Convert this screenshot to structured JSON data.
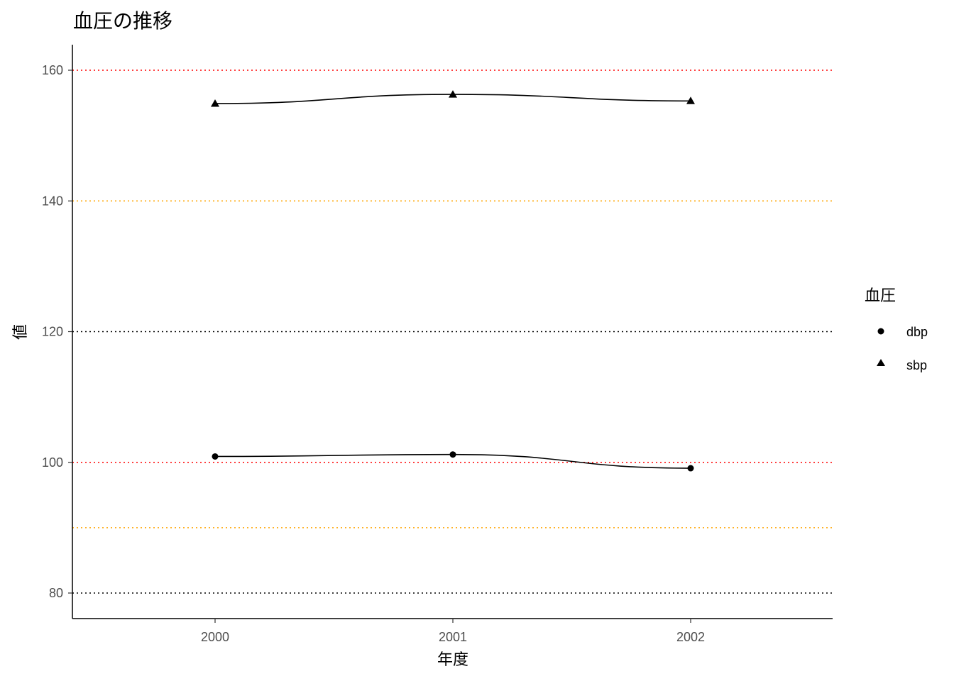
{
  "chart_data": {
    "type": "line",
    "title": "血圧の推移",
    "xlabel": "年度",
    "ylabel": "値",
    "x": [
      "2000",
      "2001",
      "2002"
    ],
    "yticks": [
      "80",
      "100",
      "120",
      "140",
      "160"
    ],
    "ylim": [
      76,
      164
    ],
    "series": [
      {
        "name": "dbp",
        "marker": "circle",
        "values": [
          100.9,
          101.2,
          99.1
        ]
      },
      {
        "name": "sbp",
        "marker": "triangle",
        "values": [
          154.9,
          156.3,
          155.3
        ]
      }
    ],
    "reference_lines": [
      {
        "y": 160,
        "color": "#ff0000",
        "style": "dotted"
      },
      {
        "y": 140,
        "color": "#ffa500",
        "style": "dotted"
      },
      {
        "y": 120,
        "color": "#000000",
        "style": "dotted"
      },
      {
        "y": 100,
        "color": "#ff0000",
        "style": "dotted"
      },
      {
        "y": 90,
        "color": "#ffa500",
        "style": "dotted"
      },
      {
        "y": 80,
        "color": "#000000",
        "style": "dotted"
      }
    ],
    "legend": {
      "title": "血圧",
      "position": "right",
      "items": [
        "dbp",
        "sbp"
      ]
    },
    "grid": false
  }
}
